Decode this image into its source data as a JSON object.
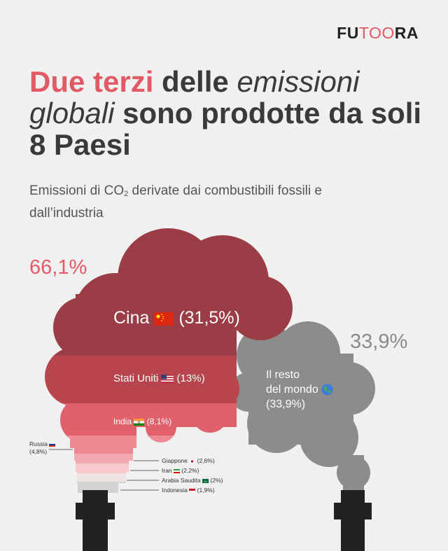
{
  "brand": {
    "logo_left": "FU",
    "logo_mid": "TOO",
    "logo_right": "RA"
  },
  "title": {
    "part1": "Due terzi",
    "part2": " delle ",
    "part3": "emissioni globali",
    "part4": " sono prodotte da soli 8 Paesi"
  },
  "subtitle": {
    "line_a": "Emissioni di CO",
    "sub": "2",
    "line_b": " derivate dai combustibili fossili e dall’industria"
  },
  "totals": {
    "left": "66,1%",
    "right": "33,9%"
  },
  "labels": {
    "cina": "Cina",
    "cina_pct": "(31,5%)",
    "usa": "Stati Uniti",
    "usa_pct": "(13%)",
    "india": "India",
    "india_pct": "(8,1%)",
    "rest_1": "Il resto",
    "rest_2": "del mondo",
    "rest_pct": "(33,9%)",
    "russia": "Russia",
    "russia_pct": "(4,8%)",
    "giappone": "Giappone",
    "giappone_pct": "(2,6%)",
    "iran": "Iran",
    "iran_pct": "(2,2%)",
    "arabia": "Arabia Saudita",
    "arabia_pct": "(2%)",
    "indonesia": "Indonesia",
    "indonesia_pct": "(1,9%)"
  },
  "chart_data": {
    "type": "bar",
    "categories": [
      "Cina",
      "Stati Uniti",
      "India",
      "Russia",
      "Giappone",
      "Iran",
      "Arabia Saudita",
      "Indonesia",
      "Il resto del mondo"
    ],
    "values": [
      31.5,
      13,
      8.1,
      4.8,
      2.6,
      2.2,
      2,
      1.9,
      33.9
    ],
    "unit": "%",
    "colors": {
      "cina": "#9b3d46",
      "usa": "#b8444e",
      "india": "#e0606c",
      "russia": "#ee8892",
      "giappone": "#f3a9b0",
      "iran": "#f7c9cd",
      "arabia": "#efe3e3",
      "indonesia": "#d2d2d2",
      "rest": "#8c8c8c",
      "chimney": "#222222"
    }
  }
}
